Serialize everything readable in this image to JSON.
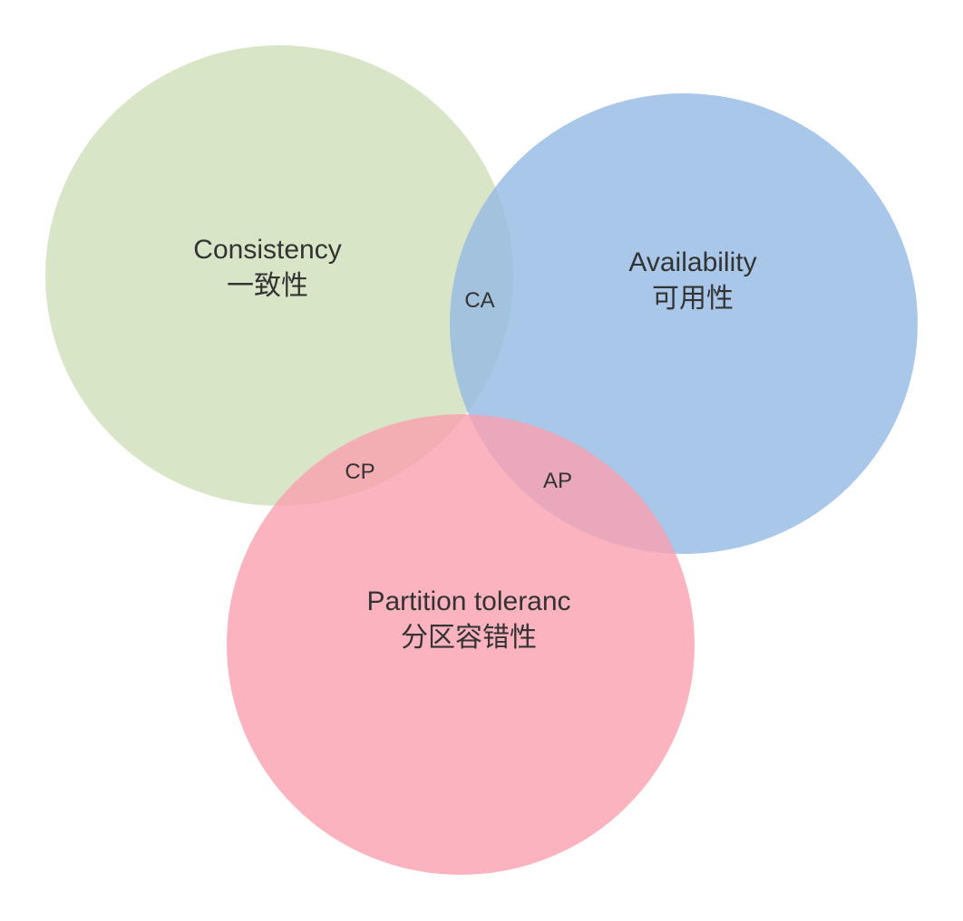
{
  "sets": {
    "consistency": {
      "name": "Consistency",
      "name_cn": "一致性",
      "color": "#cfdfb9"
    },
    "availability": {
      "name": "Availability",
      "name_cn": "可用性",
      "color": "#93b9e2"
    },
    "partition": {
      "name": "Partition toleranc",
      "name_cn": "分区容错性",
      "color": "#f9a0af"
    }
  },
  "intersections": {
    "ca": "CA",
    "cp": "CP",
    "ap": "AP"
  }
}
